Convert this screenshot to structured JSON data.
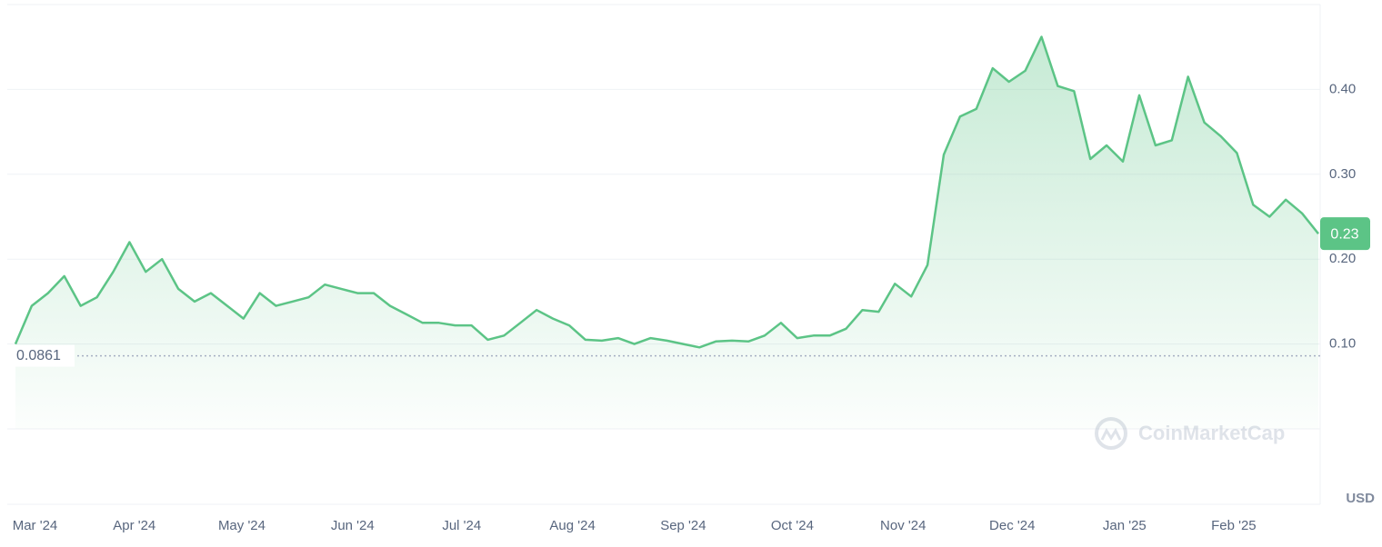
{
  "chart_data": {
    "type": "line",
    "color": "#5cc486",
    "values": [
      0.1,
      0.145,
      0.16,
      0.18,
      0.145,
      0.155,
      0.185,
      0.22,
      0.185,
      0.2,
      0.165,
      0.15,
      0.16,
      0.145,
      0.13,
      0.16,
      0.145,
      0.15,
      0.155,
      0.17,
      0.165,
      0.16,
      0.16,
      0.145,
      0.135,
      0.125,
      0.125,
      0.122,
      0.122,
      0.105,
      0.11,
      0.125,
      0.14,
      0.13,
      0.122,
      0.105,
      0.104,
      0.107,
      0.1,
      0.107,
      0.104,
      0.1,
      0.096,
      0.103,
      0.104,
      0.103,
      0.11,
      0.125,
      0.107,
      0.11,
      0.11,
      0.118,
      0.14,
      0.138,
      0.171,
      0.156,
      0.193,
      0.323,
      0.368,
      0.377,
      0.425,
      0.409,
      0.422,
      0.462,
      0.404,
      0.398,
      0.318,
      0.334,
      0.315,
      0.393,
      0.334,
      0.34,
      0.415,
      0.361,
      0.345,
      0.325,
      0.264,
      0.25,
      0.27,
      0.254,
      0.23
    ],
    "xlim": [
      0,
      80
    ],
    "xticks": [
      {
        "value": 1.2,
        "label": "Mar '24"
      },
      {
        "value": 7.3,
        "label": "Apr '24"
      },
      {
        "value": 13.9,
        "label": "May '24"
      },
      {
        "value": 20.7,
        "label": "Jun '24"
      },
      {
        "value": 27.4,
        "label": "Jul '24"
      },
      {
        "value": 34.2,
        "label": "Aug '24"
      },
      {
        "value": 41.0,
        "label": "Sep '24"
      },
      {
        "value": 47.7,
        "label": "Oct '24"
      },
      {
        "value": 54.5,
        "label": "Nov '24"
      },
      {
        "value": 61.2,
        "label": "Dec '24"
      },
      {
        "value": 68.1,
        "label": "Jan '25"
      },
      {
        "value": 74.8,
        "label": "Feb '25"
      }
    ],
    "ylim": [
      0,
      0.5
    ],
    "yticks": [
      {
        "value": 0.1,
        "label": "0.10"
      },
      {
        "value": 0.2,
        "label": "0.20"
      },
      {
        "value": 0.3,
        "label": "0.30"
      },
      {
        "value": 0.4,
        "label": "0.40"
      }
    ],
    "grid": true,
    "baseline": 0.0861,
    "current_price": 0.23,
    "currency": "USD",
    "watermark": "CoinMarketCap"
  }
}
